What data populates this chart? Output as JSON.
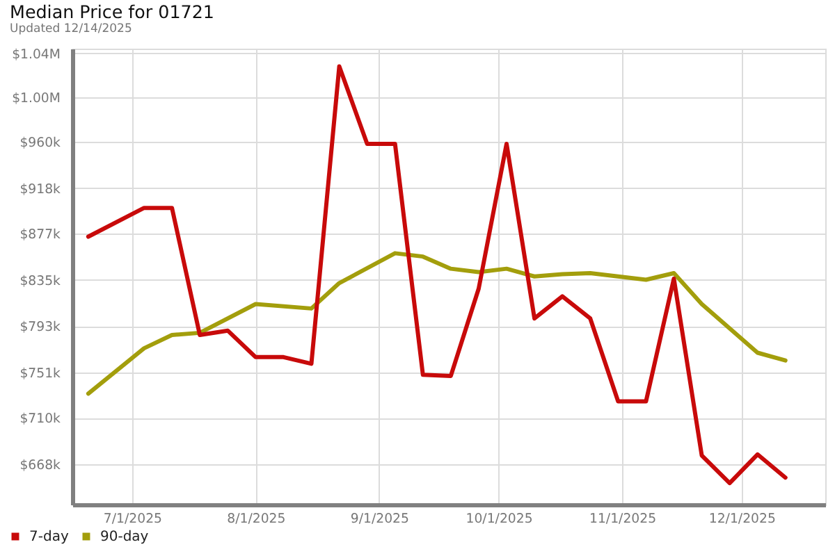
{
  "chart_data": {
    "type": "line",
    "title": "Median Price for 01721",
    "subtitle": "Updated 12/14/2025",
    "xlim": [
      "2025-06-16",
      "2025-12-22"
    ],
    "xticks": [
      {
        "value": "2025-07-01",
        "label": "7/1/2025"
      },
      {
        "value": "2025-08-01",
        "label": "8/1/2025"
      },
      {
        "value": "2025-09-01",
        "label": "9/1/2025"
      },
      {
        "value": "2025-10-01",
        "label": "10/1/2025"
      },
      {
        "value": "2025-11-01",
        "label": "11/1/2025"
      },
      {
        "value": "2025-12-01",
        "label": "12/1/2025"
      }
    ],
    "ylim": [
      631600,
      1044100
    ],
    "yticks": [
      {
        "value": 668000,
        "label": "$668k"
      },
      {
        "value": 710000,
        "label": "$710k"
      },
      {
        "value": 751000,
        "label": "$751k"
      },
      {
        "value": 793000,
        "label": "$793k"
      },
      {
        "value": 835000,
        "label": "$835k"
      },
      {
        "value": 877000,
        "label": "$877k"
      },
      {
        "value": 918000,
        "label": "$918k"
      },
      {
        "value": 960000,
        "label": "$960k"
      },
      {
        "value": 1000000,
        "label": "$1.00M"
      },
      {
        "value": 1040000,
        "label": "$1.04M"
      }
    ],
    "grid": true,
    "legend": "bottom left",
    "series": [
      {
        "name": "7-day",
        "color": "#c80a0a",
        "x": [
          "2025-06-20",
          "2025-07-04",
          "2025-07-11",
          "2025-07-18",
          "2025-07-25",
          "2025-08-01",
          "2025-08-08",
          "2025-08-15",
          "2025-08-22",
          "2025-08-29",
          "2025-09-05",
          "2025-09-12",
          "2025-09-19",
          "2025-09-26",
          "2025-10-03",
          "2025-10-10",
          "2025-10-17",
          "2025-10-24",
          "2025-10-31",
          "2025-11-07",
          "2025-11-14",
          "2025-11-21",
          "2025-11-28",
          "2025-12-05",
          "2025-12-12"
        ],
        "values": [
          874000,
          900000,
          900000,
          785000,
          789000,
          765000,
          765000,
          759000,
          1028000,
          958000,
          958000,
          749000,
          748000,
          827000,
          958000,
          800000,
          820000,
          800000,
          725000,
          725000,
          836000,
          676000,
          651000,
          677000,
          656000
        ]
      },
      {
        "name": "90-day",
        "color": "#a39e0c",
        "x": [
          "2025-06-20",
          "2025-07-04",
          "2025-07-11",
          "2025-07-18",
          "2025-08-01",
          "2025-08-15",
          "2025-08-22",
          "2025-09-05",
          "2025-09-12",
          "2025-09-19",
          "2025-09-26",
          "2025-10-03",
          "2025-10-10",
          "2025-10-17",
          "2025-10-24",
          "2025-10-31",
          "2025-11-07",
          "2025-11-14",
          "2025-11-21",
          "2025-11-28",
          "2025-12-05",
          "2025-12-12"
        ],
        "values": [
          732000,
          773000,
          785000,
          787000,
          813000,
          809000,
          832000,
          859000,
          856000,
          845000,
          842000,
          845000,
          838000,
          840000,
          841000,
          838000,
          835000,
          841000,
          813000,
          791000,
          769000,
          762000
        ]
      }
    ]
  }
}
